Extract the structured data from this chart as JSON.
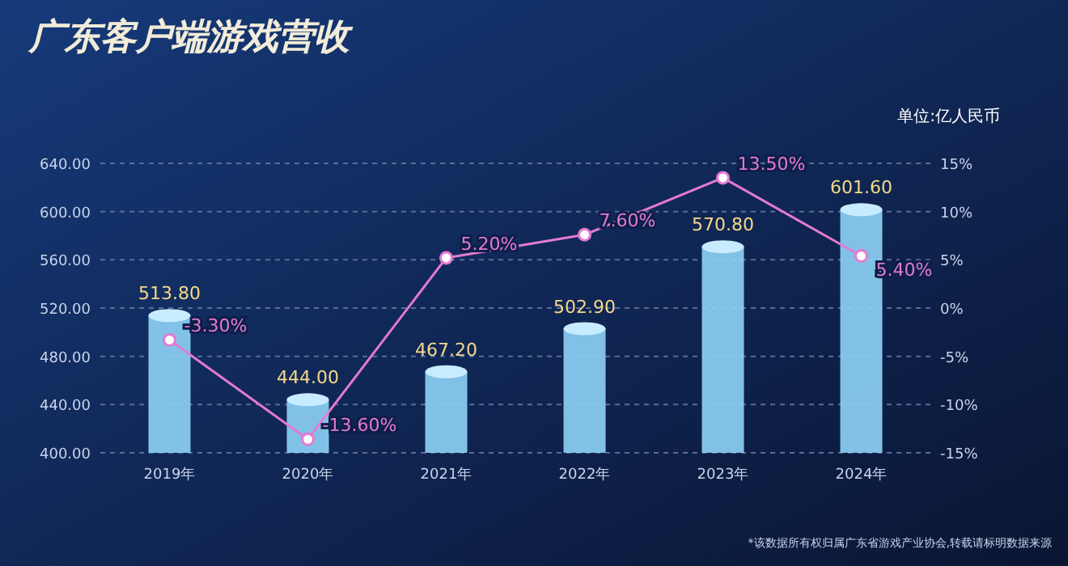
{
  "chart_data": {
    "type": "bar",
    "title": "广东客户端游戏营收",
    "subtitle": "单位:亿人民币",
    "categories": [
      "2019年",
      "2020年",
      "2021年",
      "2022年",
      "2023年",
      "2024年"
    ],
    "series": [
      {
        "color": "#8fd3f7",
        "values": [
          513.8,
          444.0,
          467.2,
          502.9,
          570.8,
          601.6
        ],
        "value_labels": [
          "513.80",
          "444.00",
          "467.20",
          "502.90",
          "570.80",
          "601.60"
        ]
      },
      {
        "type": "line",
        "axis": "y2",
        "color": "#e47ad0",
        "marker": "circle",
        "values": [
          -3.3,
          -13.6,
          5.2,
          7.6,
          13.5,
          5.4
        ],
        "value_labels": [
          "-3.30%",
          "-13.60%",
          "5.20%",
          "7.60%",
          "13.50%",
          "5.40%"
        ]
      }
    ],
    "ylim": [
      400,
      640
    ],
    "yticks": [
      {
        "value": 400,
        "label": "400.00"
      },
      {
        "value": 440,
        "label": "440.00"
      },
      {
        "value": 480,
        "label": "480.00"
      },
      {
        "value": 520,
        "label": "520.00"
      },
      {
        "value": 560,
        "label": "560.00"
      },
      {
        "value": 600,
        "label": "600.00"
      },
      {
        "value": 640,
        "label": "640.00"
      }
    ],
    "y2lim": [
      -15,
      15
    ],
    "y2ticks": [
      {
        "value": -15,
        "label": "-15%"
      },
      {
        "value": -10,
        "label": "-10%"
      },
      {
        "value": -5,
        "label": "-5%"
      },
      {
        "value": 0,
        "label": "0%"
      },
      {
        "value": 5,
        "label": "5%"
      },
      {
        "value": 10,
        "label": "10%"
      },
      {
        "value": 15,
        "label": "15%"
      }
    ],
    "grid": "y",
    "annotations": [
      "*该数据所有权归属广东省游戏产业协会,转载请标明数据来源"
    ]
  }
}
